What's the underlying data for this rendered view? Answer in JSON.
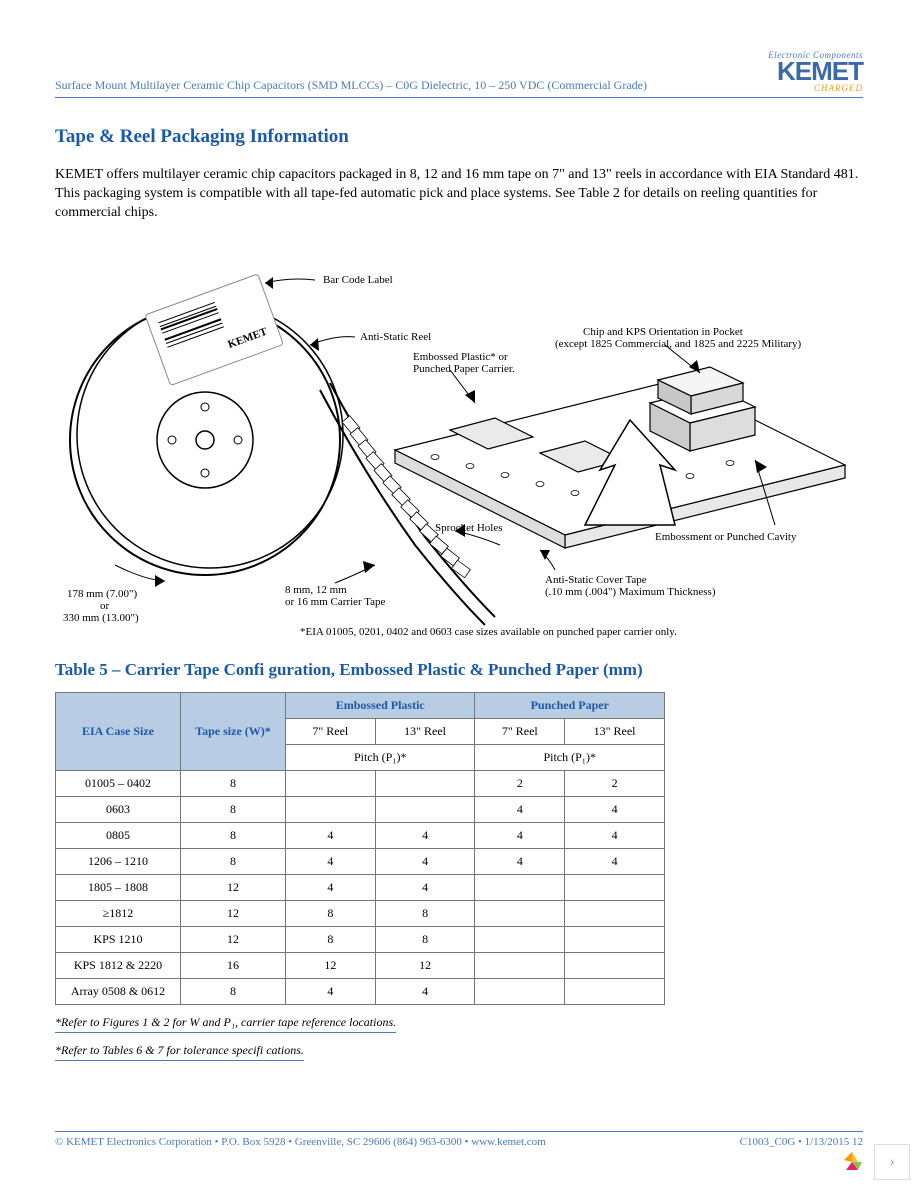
{
  "header": {
    "breadcrumb": "Surface Mount Multilayer Ceramic Chip Capacitors (SMD MLCCs) – C0G Dielectric, 10 – 250 VDC (Commercial Grade)",
    "logo_tagline": "Electronic Components",
    "logo_main": "KEMET",
    "logo_charged": "CHARGED"
  },
  "section": {
    "title": "Tape & Reel Packaging Information",
    "body": "KEMET offers multilayer ceramic chip capacitors packaged in 8, 12 and 16 mm tape on 7\" and 13\" reels in accordance with EIA Standard 481. This packaging system is compatible with all tape-fed automatic pick and place systems. See Table 2 for details on reeling quantities for commercial chips."
  },
  "diagram": {
    "labels": {
      "barcode": "Bar Code Label",
      "antistatic_reel": "Anti-Static Reel",
      "carrier1": "Embossed Plastic* or",
      "carrier2": "Punched Paper Carrier.",
      "orientation1": "Chip and KPS Orientation in Pocket",
      "orientation2": "(except 1825 Commercial, and 1825 and 2225 Military)",
      "sprocket": "Sprocket Holes",
      "cavity": "Embossment or Punched Cavity",
      "covertape1": "Anti-Static Cover Tape",
      "covertape2": "(.10 mm (.004\") Maximum Thickness)",
      "tapewidth1": "8 mm, 12 mm",
      "tapewidth2": "or 16 mm Carrier Tape",
      "reelsize1": "178 mm (7.00\")",
      "reelsize2": "or",
      "reelsize3": "330 mm (13.00\")",
      "footnote": "*EIA 01005, 0201, 0402 and 0603 case sizes available on punched paper carrier only."
    }
  },
  "table": {
    "title": "Table 5 – Carrier Tape Confi guration, Embossed Plastic & Punched Paper (mm)",
    "head": {
      "col1": "EIA Case Size",
      "col2": "Tape size (W)*",
      "embossed": "Embossed Plastic",
      "punched": "Punched Paper",
      "r7": "7\" Reel",
      "r13": "13\" Reel",
      "pitch": "Pitch (P₁)*"
    },
    "rows": [
      {
        "case": "01005 – 0402",
        "w": "8",
        "e7": "",
        "e13": "",
        "p7": "2",
        "p13": "2"
      },
      {
        "case": "0603",
        "w": "8",
        "e7": "",
        "e13": "",
        "p7": "4",
        "p13": "4"
      },
      {
        "case": "0805",
        "w": "8",
        "e7": "4",
        "e13": "4",
        "p7": "4",
        "p13": "4"
      },
      {
        "case": "1206 – 1210",
        "w": "8",
        "e7": "4",
        "e13": "4",
        "p7": "4",
        "p13": "4"
      },
      {
        "case": "1805 – 1808",
        "w": "12",
        "e7": "4",
        "e13": "4",
        "p7": "",
        "p13": ""
      },
      {
        "case": "≥1812",
        "w": "12",
        "e7": "8",
        "e13": "8",
        "p7": "",
        "p13": ""
      },
      {
        "case": "KPS 1210",
        "w": "12",
        "e7": "8",
        "e13": "8",
        "p7": "",
        "p13": ""
      },
      {
        "case": "KPS 1812 & 2220",
        "w": "16",
        "e7": "12",
        "e13": "12",
        "p7": "",
        "p13": ""
      },
      {
        "case": "Array 0508 & 0612",
        "w": "8",
        "e7": "4",
        "e13": "4",
        "p7": "",
        "p13": ""
      }
    ],
    "footnote1": "*Refer to Figures 1 & 2 for W and P₁, carrier tape reference locations.",
    "footnote2": "*Refer to Tables 6 & 7 for tolerance specifi cations."
  },
  "footer": {
    "left": "© KEMET Electronics Corporation • P.O. Box 5928 • Greenville, SC 29606 (864) 963-6300 • www.kemet.com",
    "right": "C1003_C0G • 1/13/2015 12"
  }
}
